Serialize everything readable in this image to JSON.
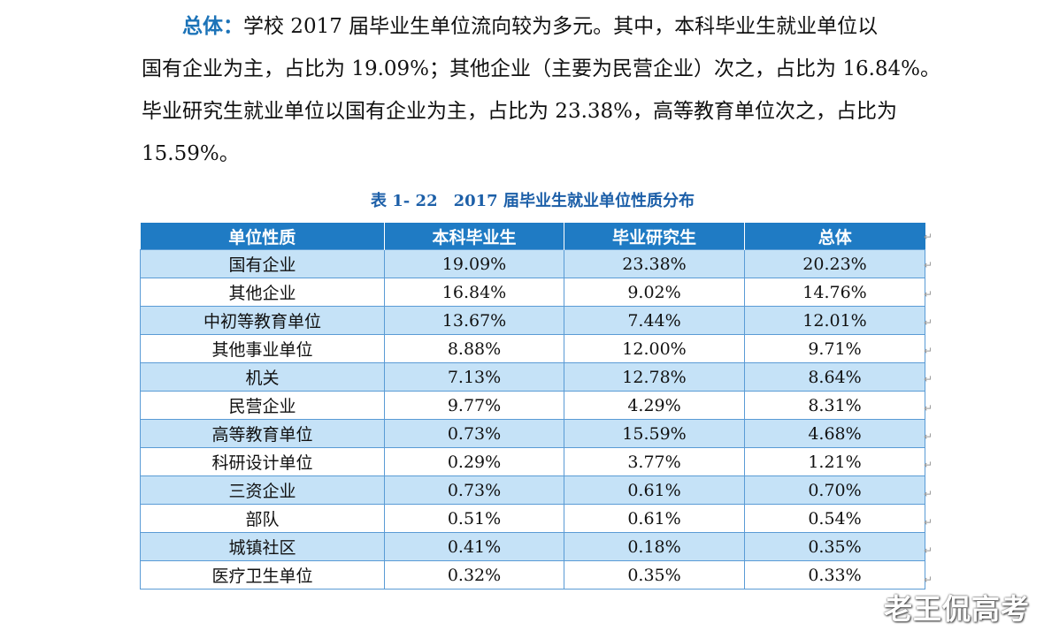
{
  "paragraph": {
    "lead": "总体：",
    "line1": "学校 2017 届毕业生单位流向较为多元。其中，本科毕业生就业单位以",
    "line2": "国有企业为主，占比为 19.09%；其他企业（主要为民营企业）次之，占比为 16.84%。",
    "line3": "毕业研究生就业单位以国有企业为主，占比为 23.38%，高等教育单位次之，占比为",
    "line4": "15.59%。"
  },
  "table": {
    "caption": "表 1- 22　2017 届毕业生就业单位性质分布",
    "headers": [
      "单位性质",
      "本科毕业生",
      "毕业研究生",
      "总体"
    ],
    "rows": [
      [
        "国有企业",
        "19.09%",
        "23.38%",
        "20.23%"
      ],
      [
        "其他企业",
        "16.84%",
        "9.02%",
        "14.76%"
      ],
      [
        "中初等教育单位",
        "13.67%",
        "7.44%",
        "12.01%"
      ],
      [
        "其他事业单位",
        "8.88%",
        "12.00%",
        "9.71%"
      ],
      [
        "机关",
        "7.13%",
        "12.78%",
        "8.64%"
      ],
      [
        "民营企业",
        "9.77%",
        "4.29%",
        "8.31%"
      ],
      [
        "高等教育单位",
        "0.73%",
        "15.59%",
        "4.68%"
      ],
      [
        "科研设计单位",
        "0.29%",
        "3.77%",
        "1.21%"
      ],
      [
        "三资企业",
        "0.73%",
        "0.61%",
        "0.70%"
      ],
      [
        "部队",
        "0.51%",
        "0.61%",
        "0.54%"
      ],
      [
        "城镇社区",
        "0.41%",
        "0.18%",
        "0.35%"
      ],
      [
        "医疗卫生单位",
        "0.32%",
        "0.35%",
        "0.33%"
      ]
    ]
  },
  "return_mark": "↵",
  "watermark": "老王侃高考",
  "colors": {
    "header_bg": "#1f7bc4",
    "stripe_bg": "#c5e2f7",
    "lead_text": "#1c73b8",
    "caption_text": "#1c5fa8"
  }
}
